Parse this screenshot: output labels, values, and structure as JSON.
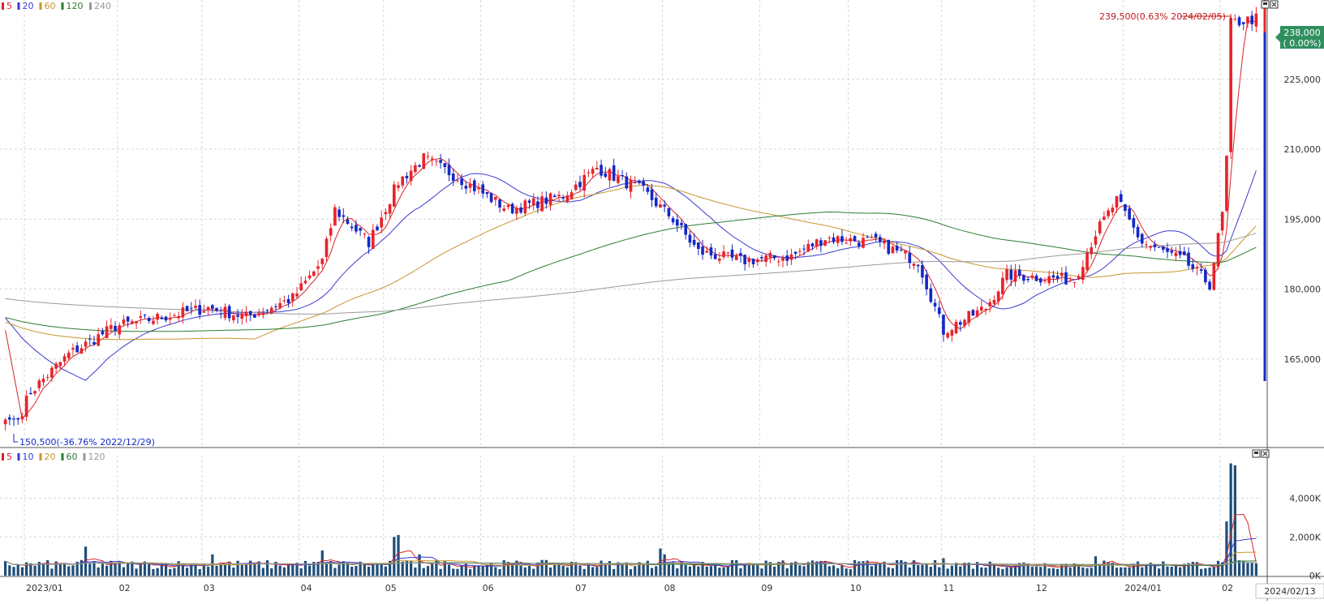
{
  "legends": {
    "price": [
      {
        "label": "5",
        "color": "#d8232a"
      },
      {
        "label": "20",
        "color": "#3b3bd0"
      },
      {
        "label": "60",
        "color": "#c8962d"
      },
      {
        "label": "120",
        "color": "#2e7d32"
      },
      {
        "label": "240",
        "color": "#999999"
      }
    ],
    "volume": [
      {
        "label": "5",
        "color": "#d8232a"
      },
      {
        "label": "10",
        "color": "#3b3bd0"
      },
      {
        "label": "20",
        "color": "#c8962d"
      },
      {
        "label": "60",
        "color": "#2e7d32"
      },
      {
        "label": "120",
        "color": "#999999"
      }
    ]
  },
  "annotations": {
    "high": "239,500(0.63% 2024/02/05)",
    "low": "150,500(-36.76% 2022/12/29)",
    "current_price": "238,000",
    "current_change": "( 0.00%)",
    "date_end": "2024/02/13"
  },
  "colors": {
    "up": "#e8232a",
    "down": "#1428c8",
    "volume": "#1f4e79",
    "current_badge": "#2f8f5f"
  },
  "chart_data": {
    "type": "candlestick",
    "price_axis": {
      "ticks": [
        165000,
        180000,
        195000,
        210000,
        225000
      ],
      "tick_labels": [
        "165,000",
        "180,000",
        "195,000",
        "210,000",
        "225,000"
      ],
      "range": [
        146000,
        242000
      ]
    },
    "volume_axis": {
      "ticks": [
        0,
        2000,
        4000
      ],
      "tick_labels": [
        "0K",
        "2,000K",
        "4,000K"
      ],
      "range": [
        0,
        6200
      ]
    },
    "x_labels": [
      "2023/01",
      "02",
      "03",
      "04",
      "05",
      "06",
      "07",
      "08",
      "09",
      "10",
      "11",
      "12",
      "2024/01",
      "02"
    ],
    "grid": true,
    "price_anchors": [
      [
        "2022-12-29",
        152000
      ],
      [
        "2023-01-03",
        158000
      ],
      [
        "2023-01-16",
        166000
      ],
      [
        "2023-01-31",
        172000
      ],
      [
        "2023-02-15",
        174000
      ],
      [
        "2023-03-02",
        176000
      ],
      [
        "2023-03-15",
        174000
      ],
      [
        "2023-03-30",
        178000
      ],
      [
        "2023-04-10",
        186000
      ],
      [
        "2023-04-13",
        197000
      ],
      [
        "2023-04-25",
        190000
      ],
      [
        "2023-05-04",
        203000
      ],
      [
        "2023-05-12",
        208000
      ],
      [
        "2023-05-24",
        204000
      ],
      [
        "2023-06-09",
        197000
      ],
      [
        "2023-06-28",
        200000
      ],
      [
        "2023-07-10",
        206000
      ],
      [
        "2023-07-25",
        201000
      ],
      [
        "2023-08-03",
        195000
      ],
      [
        "2023-08-11",
        188000
      ],
      [
        "2023-08-25",
        186000
      ],
      [
        "2023-09-12",
        187000
      ],
      [
        "2023-09-22",
        191000
      ],
      [
        "2023-10-10",
        190000
      ],
      [
        "2023-10-24",
        186000
      ],
      [
        "2023-11-01",
        171000
      ],
      [
        "2023-11-15",
        176000
      ],
      [
        "2023-11-22",
        183000
      ],
      [
        "2023-12-14",
        182000
      ],
      [
        "2023-12-21",
        192000
      ],
      [
        "2023-12-28",
        199000
      ],
      [
        "2024-01-05",
        190000
      ],
      [
        "2024-01-19",
        186000
      ],
      [
        "2024-01-29",
        181000
      ],
      [
        "2024-02-01",
        196000
      ],
      [
        "2024-02-02",
        208000
      ],
      [
        "2024-02-05",
        237000
      ],
      [
        "2024-02-13",
        238000
      ]
    ],
    "volume_spikes": [
      [
        "2023-01-20",
        1500
      ],
      [
        "2023-03-03",
        1100
      ],
      [
        "2023-04-10",
        1300
      ],
      [
        "2023-05-03",
        2000
      ],
      [
        "2023-05-04",
        2100
      ],
      [
        "2023-05-11",
        1100
      ],
      [
        "2023-07-31",
        1400
      ],
      [
        "2023-08-01",
        1100
      ],
      [
        "2023-11-01",
        900
      ],
      [
        "2023-12-21",
        1000
      ],
      [
        "2024-02-02",
        2800
      ],
      [
        "2024-02-05",
        5800
      ],
      [
        "2024-02-06",
        5700
      ]
    ],
    "volume_base": 600
  }
}
